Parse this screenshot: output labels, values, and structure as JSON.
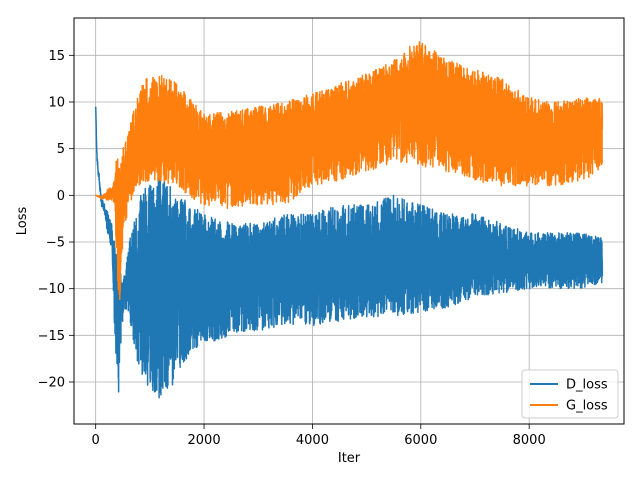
{
  "chart_data": {
    "type": "line",
    "title": "",
    "xlabel": "Iter",
    "ylabel": "Loss",
    "xlim": [
      -400,
      9750
    ],
    "ylim": [
      -24.5,
      19
    ],
    "xticks": [
      0,
      2000,
      4000,
      6000,
      8000
    ],
    "yticks": [
      -20,
      -15,
      -10,
      -5,
      0,
      5,
      10,
      15
    ],
    "grid": true,
    "legend_position": "lower-right",
    "n_points": 9370,
    "series": [
      {
        "name": "D_loss",
        "color": "#1f77b4",
        "envelope": {
          "x": [
            0,
            20,
            100,
            200,
            300,
            350,
            420,
            480,
            550,
            650,
            800,
            1000,
            1250,
            1500,
            1800,
            2000,
            2500,
            3000,
            3500,
            4000,
            4500,
            5000,
            5500,
            6000,
            6500,
            7000,
            7500,
            8000,
            8500,
            9000,
            9350
          ],
          "upper": [
            9.5,
            5.0,
            0.5,
            -1.5,
            -3.0,
            -5.0,
            -7.0,
            -9.0,
            -8.0,
            -4.0,
            0.0,
            2.0,
            2.0,
            0.0,
            -1.0,
            -2.0,
            -3.0,
            -3.0,
            -2.0,
            -2.0,
            -1.0,
            -1.0,
            0.0,
            -1.0,
            -2.0,
            -2.0,
            -3.0,
            -4.0,
            -4.0,
            -4.0,
            -4.5
          ],
          "lower": [
            9.5,
            3.0,
            -1.5,
            -3.5,
            -6.0,
            -15.0,
            -21.5,
            -14.0,
            -12.0,
            -14.0,
            -19.0,
            -21.0,
            -22.0,
            -19.5,
            -16.5,
            -16.0,
            -15.0,
            -14.5,
            -14.0,
            -14.0,
            -13.5,
            -13.0,
            -13.0,
            -12.5,
            -12.0,
            -11.0,
            -10.5,
            -10.0,
            -10.0,
            -10.0,
            -9.5
          ],
          "mid": [
            9.5,
            4.0,
            -0.5,
            -2.5,
            -4.5,
            -10.0,
            -14.0,
            -11.0,
            -10.0,
            -9.0,
            -9.5,
            -10.0,
            -10.5,
            -10.0,
            -9.5,
            -9.5,
            -9.0,
            -8.5,
            -8.0,
            -8.0,
            -7.5,
            -7.0,
            -6.5,
            -6.5,
            -7.0,
            -6.5,
            -6.5,
            -7.0,
            -7.0,
            -7.0,
            -7.0
          ]
        }
      },
      {
        "name": "G_loss",
        "color": "#ff7f0e",
        "envelope": {
          "x": [
            0,
            100,
            200,
            300,
            350,
            400,
            450,
            500,
            600,
            700,
            800,
            900,
            1000,
            1200,
            1500,
            1800,
            2000,
            2500,
            3000,
            3500,
            4000,
            4500,
            5000,
            5500,
            5800,
            6000,
            6500,
            7000,
            7500,
            8000,
            8500,
            9000,
            9350
          ],
          "upper": [
            0.0,
            0.0,
            0.5,
            1.0,
            2.0,
            5.0,
            3.0,
            5.0,
            7.0,
            9.0,
            11.0,
            12.5,
            12.5,
            13.0,
            12.0,
            10.0,
            9.0,
            9.0,
            9.5,
            10.0,
            11.0,
            12.0,
            13.0,
            14.5,
            16.0,
            16.5,
            14.5,
            13.5,
            12.5,
            10.5,
            10.0,
            10.5,
            10.5
          ],
          "lower": [
            0.0,
            -0.5,
            -0.5,
            -0.5,
            -1.0,
            -9.0,
            -12.0,
            -5.0,
            -2.0,
            0.0,
            1.0,
            1.5,
            1.5,
            1.5,
            1.0,
            -0.5,
            -1.0,
            -1.5,
            -1.0,
            -1.0,
            1.0,
            1.5,
            2.5,
            3.5,
            3.5,
            3.0,
            2.5,
            1.5,
            1.0,
            1.0,
            1.0,
            1.5,
            3.0
          ],
          "mid": [
            0.0,
            -0.2,
            0.0,
            0.3,
            0.5,
            -2.0,
            -5.0,
            0.0,
            2.5,
            4.5,
            6.0,
            6.5,
            6.5,
            7.0,
            6.0,
            5.0,
            4.5,
            4.5,
            5.0,
            5.5,
            6.5,
            7.5,
            8.5,
            9.5,
            10.5,
            10.5,
            9.0,
            8.0,
            7.0,
            6.0,
            6.0,
            6.5,
            7.0
          ]
        }
      }
    ]
  }
}
